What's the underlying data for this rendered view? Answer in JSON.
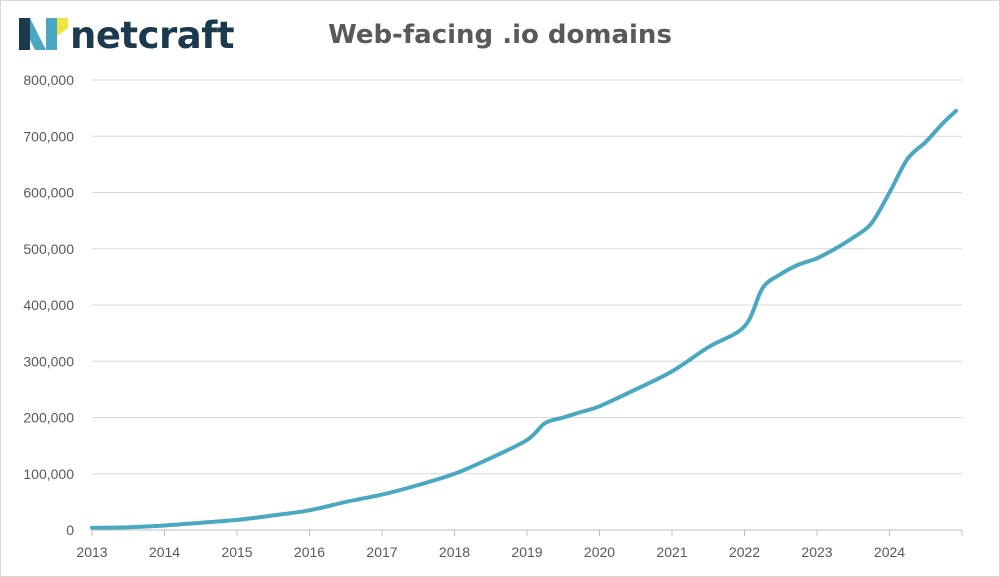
{
  "brand": {
    "name": "netcraft",
    "logo_colors": {
      "teal": "#4aa9c0",
      "navy": "#1c3a4d",
      "yellow": "#f0e442"
    }
  },
  "chart_data": {
    "type": "line",
    "title": "Web-facing .io domains",
    "xlabel": "",
    "ylabel": "",
    "x_ticks": [
      "2013",
      "2014",
      "2015",
      "2016",
      "2017",
      "2018",
      "2019",
      "2020",
      "2021",
      "2022",
      "2023",
      "2024"
    ],
    "y_ticks": [
      "0",
      "100,000",
      "200,000",
      "300,000",
      "400,000",
      "500,000",
      "600,000",
      "700,000",
      "800,000"
    ],
    "xlim": [
      "2013-01",
      "2024-12"
    ],
    "ylim": [
      0,
      800000
    ],
    "grid": {
      "horizontal": true,
      "vertical": false
    },
    "line_color": "#4aa9c0",
    "series": [
      {
        "x": [
          "2013-01",
          "2013-07",
          "2014-01",
          "2014-07",
          "2015-01",
          "2015-07",
          "2016-01",
          "2016-07",
          "2017-01",
          "2017-07",
          "2018-01",
          "2018-07",
          "2019-01",
          "2019-04",
          "2019-07",
          "2019-10",
          "2020-01",
          "2020-07",
          "2021-01",
          "2021-07",
          "2022-01",
          "2022-04",
          "2022-07",
          "2022-10",
          "2023-01",
          "2023-04",
          "2023-07",
          "2023-10",
          "2024-01",
          "2024-04",
          "2024-07",
          "2024-10",
          "2024-12"
        ],
        "values": [
          4000,
          5000,
          8000,
          13000,
          18000,
          26000,
          35000,
          50000,
          63000,
          80000,
          100000,
          128000,
          160000,
          190000,
          200000,
          210000,
          220000,
          250000,
          282000,
          325000,
          362000,
          430000,
          455000,
          472000,
          483000,
          500000,
          520000,
          545000,
          600000,
          660000,
          690000,
          725000,
          745000
        ]
      }
    ]
  }
}
